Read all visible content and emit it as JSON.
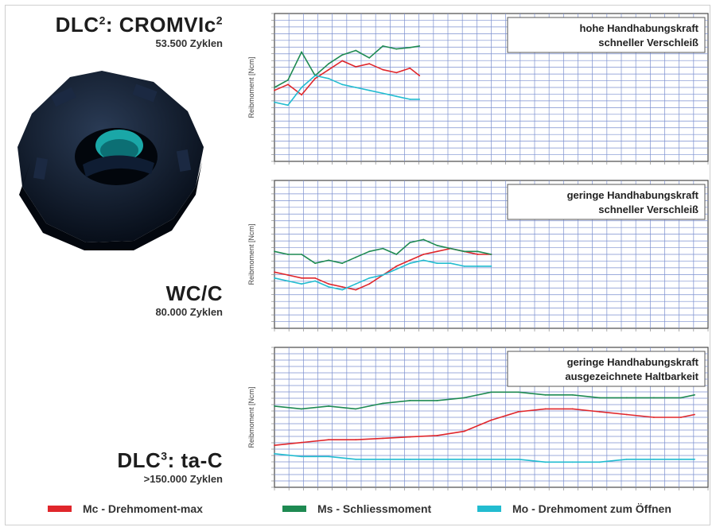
{
  "labels": [
    {
      "title": "DLC",
      "sup": "2",
      "rest": ": CROMVIc",
      "sup2": "2",
      "subtitle": "53.500 Zyklen"
    },
    {
      "title": "WC/C",
      "sup": "",
      "rest": "",
      "sup2": "",
      "subtitle": "80.000 Zyklen"
    },
    {
      "title": "DLC",
      "sup": "3",
      "rest": ": ta-C",
      "sup2": "",
      "subtitle": ">150.000 Zyklen"
    }
  ],
  "legend": [
    {
      "label": "Mc - Drehmoment-max",
      "color": "#e0262b"
    },
    {
      "label": "Ms - Schliessmoment",
      "color": "#1e8a52"
    },
    {
      "label": "Mo - Drehmoment zum Öffnen",
      "color": "#22bcd0"
    }
  ],
  "colors": {
    "grid": "#7b8fcf",
    "frame": "#4a4a4a",
    "part": "#0c1a2c",
    "part_hole": "#1aa7a7"
  },
  "chart_data": [
    {
      "type": "line",
      "ylabel": "Reibmoment [Ncm]",
      "annotation": [
        "hohe Handhabungskraft",
        "schneller Verschleiß"
      ],
      "x_max": 160000,
      "ylim": [
        0,
        100
      ],
      "x": [
        0,
        5000,
        10000,
        15000,
        20000,
        25000,
        30000,
        35000,
        40000,
        45000,
        50000,
        53500
      ],
      "series": [
        {
          "color": "#e0262b",
          "values": [
            48,
            52,
            45,
            56,
            62,
            68,
            64,
            66,
            62,
            60,
            63,
            58
          ]
        },
        {
          "color": "#1e8a52",
          "values": [
            50,
            55,
            74,
            58,
            66,
            72,
            75,
            70,
            78,
            76,
            77,
            78
          ]
        },
        {
          "color": "#22bcd0",
          "values": [
            40,
            38,
            50,
            58,
            56,
            52,
            50,
            48,
            46,
            44,
            42,
            42
          ]
        }
      ]
    },
    {
      "type": "line",
      "ylabel": "Reibmoment [Ncm]",
      "annotation": [
        "geringe Handhabungskraft",
        "schneller Verschleiß"
      ],
      "x_max": 160000,
      "ylim": [
        0,
        100
      ],
      "x": [
        0,
        5000,
        10000,
        15000,
        20000,
        25000,
        30000,
        35000,
        40000,
        45000,
        50000,
        55000,
        60000,
        65000,
        70000,
        75000,
        80000
      ],
      "series": [
        {
          "color": "#e0262b",
          "values": [
            38,
            36,
            34,
            34,
            30,
            28,
            26,
            30,
            36,
            42,
            46,
            50,
            52,
            54,
            52,
            50,
            50
          ]
        },
        {
          "color": "#1e8a52",
          "values": [
            52,
            50,
            50,
            44,
            46,
            44,
            48,
            52,
            54,
            50,
            58,
            60,
            56,
            54,
            52,
            52,
            50
          ]
        },
        {
          "color": "#22bcd0",
          "values": [
            34,
            32,
            30,
            32,
            28,
            26,
            30,
            34,
            36,
            40,
            44,
            46,
            44,
            44,
            42,
            42,
            42
          ]
        }
      ]
    },
    {
      "type": "line",
      "ylabel": "Reibmoment [Ncm]",
      "annotation": [
        "geringe Handhabungskraft",
        "ausgezeichnete Haltbarkeit"
      ],
      "x_max": 160000,
      "ylim": [
        0,
        100
      ],
      "x": [
        0,
        10000,
        20000,
        30000,
        40000,
        50000,
        60000,
        70000,
        80000,
        90000,
        100000,
        110000,
        120000,
        130000,
        140000,
        150000,
        155000
      ],
      "series": [
        {
          "color": "#e0262b",
          "values": [
            30,
            32,
            34,
            34,
            35,
            36,
            37,
            40,
            48,
            54,
            56,
            56,
            54,
            52,
            50,
            50,
            52
          ]
        },
        {
          "color": "#1e8a52",
          "values": [
            58,
            56,
            58,
            56,
            60,
            62,
            62,
            64,
            68,
            68,
            66,
            66,
            64,
            64,
            64,
            64,
            66
          ]
        },
        {
          "color": "#22bcd0",
          "values": [
            24,
            22,
            22,
            20,
            20,
            20,
            20,
            20,
            20,
            20,
            18,
            18,
            18,
            20,
            20,
            20,
            20
          ]
        }
      ]
    }
  ]
}
